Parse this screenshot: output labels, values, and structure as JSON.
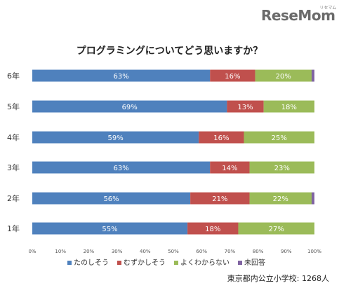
{
  "logo": {
    "text": "ReseMom",
    "sub": "リセマム"
  },
  "chart_data": {
    "type": "bar",
    "orientation": "horizontal",
    "stacked": true,
    "title": "プログラミングについてどう思いますか？",
    "categories": [
      "6年",
      "5年",
      "4年",
      "3年",
      "2年",
      "1年"
    ],
    "series": [
      {
        "name": "たのしそう",
        "color": "#4f81bd",
        "values": [
          63,
          69,
          59,
          63,
          56,
          55
        ],
        "labels": [
          "63%",
          "69%",
          "59%",
          "63%",
          "56%",
          "55%"
        ]
      },
      {
        "name": "むずかしそう",
        "color": "#c0504d",
        "values": [
          16,
          13,
          16,
          14,
          21,
          18
        ],
        "labels": [
          "16%",
          "13%",
          "16%",
          "14%",
          "21%",
          "18%"
        ]
      },
      {
        "name": "よくわからない",
        "color": "#9bbb59",
        "values": [
          20,
          18,
          25,
          23,
          22,
          27
        ],
        "labels": [
          "20%",
          "18%",
          "25%",
          "23%",
          "22%",
          "27%"
        ]
      },
      {
        "name": "未回答",
        "color": "#8064a2",
        "values": [
          1,
          0,
          0,
          0,
          1,
          0
        ],
        "labels": [
          "",
          "",
          "",
          "",
          "",
          ""
        ]
      }
    ],
    "xlim": [
      0,
      100
    ],
    "x_ticks": [
      "0%",
      "10%",
      "20%",
      "30%",
      "40%",
      "50%",
      "60%",
      "70%",
      "80%",
      "90%",
      "100%"
    ],
    "legend_position": "bottom-left",
    "source": "東京都内公立小学校: 1268人"
  }
}
